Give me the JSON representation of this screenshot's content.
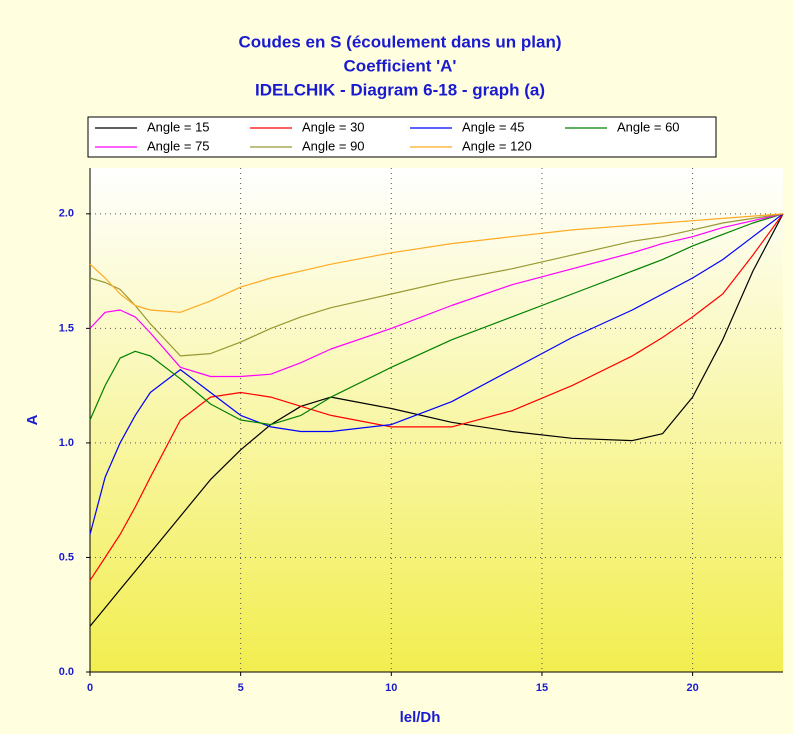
{
  "chart_data": {
    "type": "line",
    "title": [
      "Coudes en S (écoulement dans un plan)",
      "Coefficient 'A'",
      "IDELCHIK - Diagram 6-18 - graph (a)"
    ],
    "xlabel": "lel/Dh",
    "ylabel": "A",
    "x": [
      0,
      0.5,
      1,
      1.5,
      2,
      3,
      4,
      5,
      6,
      7,
      8,
      10,
      12,
      14,
      16,
      18,
      19,
      20,
      21,
      22,
      23
    ],
    "xlim": [
      0,
      23
    ],
    "ylim": [
      0,
      2.2
    ],
    "xticks": [
      0,
      5,
      10,
      15,
      20
    ],
    "yticks": [
      {
        "value": 0,
        "label": "0.0"
      },
      {
        "value": 0.5,
        "label": "0.5"
      },
      {
        "value": 1,
        "label": "1.0"
      },
      {
        "value": 1.5,
        "label": "1.5"
      },
      {
        "value": 2,
        "label": "2.0"
      }
    ],
    "grid": true,
    "legend": "top",
    "series": [
      {
        "name": "Angle = 15",
        "color": "#000000",
        "values": [
          0.2,
          0.28,
          0.36,
          0.44,
          0.52,
          0.68,
          0.84,
          0.97,
          1.08,
          1.16,
          1.2,
          1.15,
          1.09,
          1.05,
          1.02,
          1.01,
          1.04,
          1.2,
          1.45,
          1.75,
          2.0
        ]
      },
      {
        "name": "Angle = 30",
        "color": "#ff0000",
        "values": [
          0.4,
          0.5,
          0.6,
          0.72,
          0.85,
          1.1,
          1.2,
          1.22,
          1.2,
          1.16,
          1.12,
          1.07,
          1.07,
          1.14,
          1.25,
          1.38,
          1.46,
          1.55,
          1.65,
          1.82,
          2.0
        ]
      },
      {
        "name": "Angle = 45",
        "color": "#0000ff",
        "values": [
          0.6,
          0.85,
          1.0,
          1.12,
          1.22,
          1.32,
          1.22,
          1.12,
          1.07,
          1.05,
          1.05,
          1.08,
          1.18,
          1.32,
          1.46,
          1.58,
          1.65,
          1.72,
          1.8,
          1.9,
          2.0
        ]
      },
      {
        "name": "Angle = 60",
        "color": "#008000",
        "values": [
          1.1,
          1.25,
          1.37,
          1.4,
          1.38,
          1.28,
          1.17,
          1.1,
          1.08,
          1.12,
          1.2,
          1.33,
          1.45,
          1.55,
          1.65,
          1.75,
          1.8,
          1.86,
          1.91,
          1.96,
          2.0
        ]
      },
      {
        "name": "Angle = 75",
        "color": "#ff00ff",
        "values": [
          1.5,
          1.57,
          1.58,
          1.55,
          1.48,
          1.33,
          1.29,
          1.29,
          1.3,
          1.35,
          1.41,
          1.5,
          1.6,
          1.69,
          1.76,
          1.83,
          1.87,
          1.9,
          1.94,
          1.97,
          2.0
        ]
      },
      {
        "name": "Angle = 90",
        "color": "#999933",
        "values": [
          1.72,
          1.7,
          1.67,
          1.6,
          1.52,
          1.38,
          1.39,
          1.44,
          1.5,
          1.55,
          1.59,
          1.65,
          1.71,
          1.76,
          1.82,
          1.88,
          1.9,
          1.93,
          1.96,
          1.98,
          2.0
        ]
      },
      {
        "name": "Angle = 120",
        "color": "#ffaa22",
        "values": [
          1.78,
          1.72,
          1.65,
          1.6,
          1.58,
          1.57,
          1.62,
          1.68,
          1.72,
          1.75,
          1.78,
          1.83,
          1.87,
          1.9,
          1.93,
          1.95,
          1.96,
          1.97,
          1.98,
          1.99,
          2.0
        ]
      }
    ]
  }
}
